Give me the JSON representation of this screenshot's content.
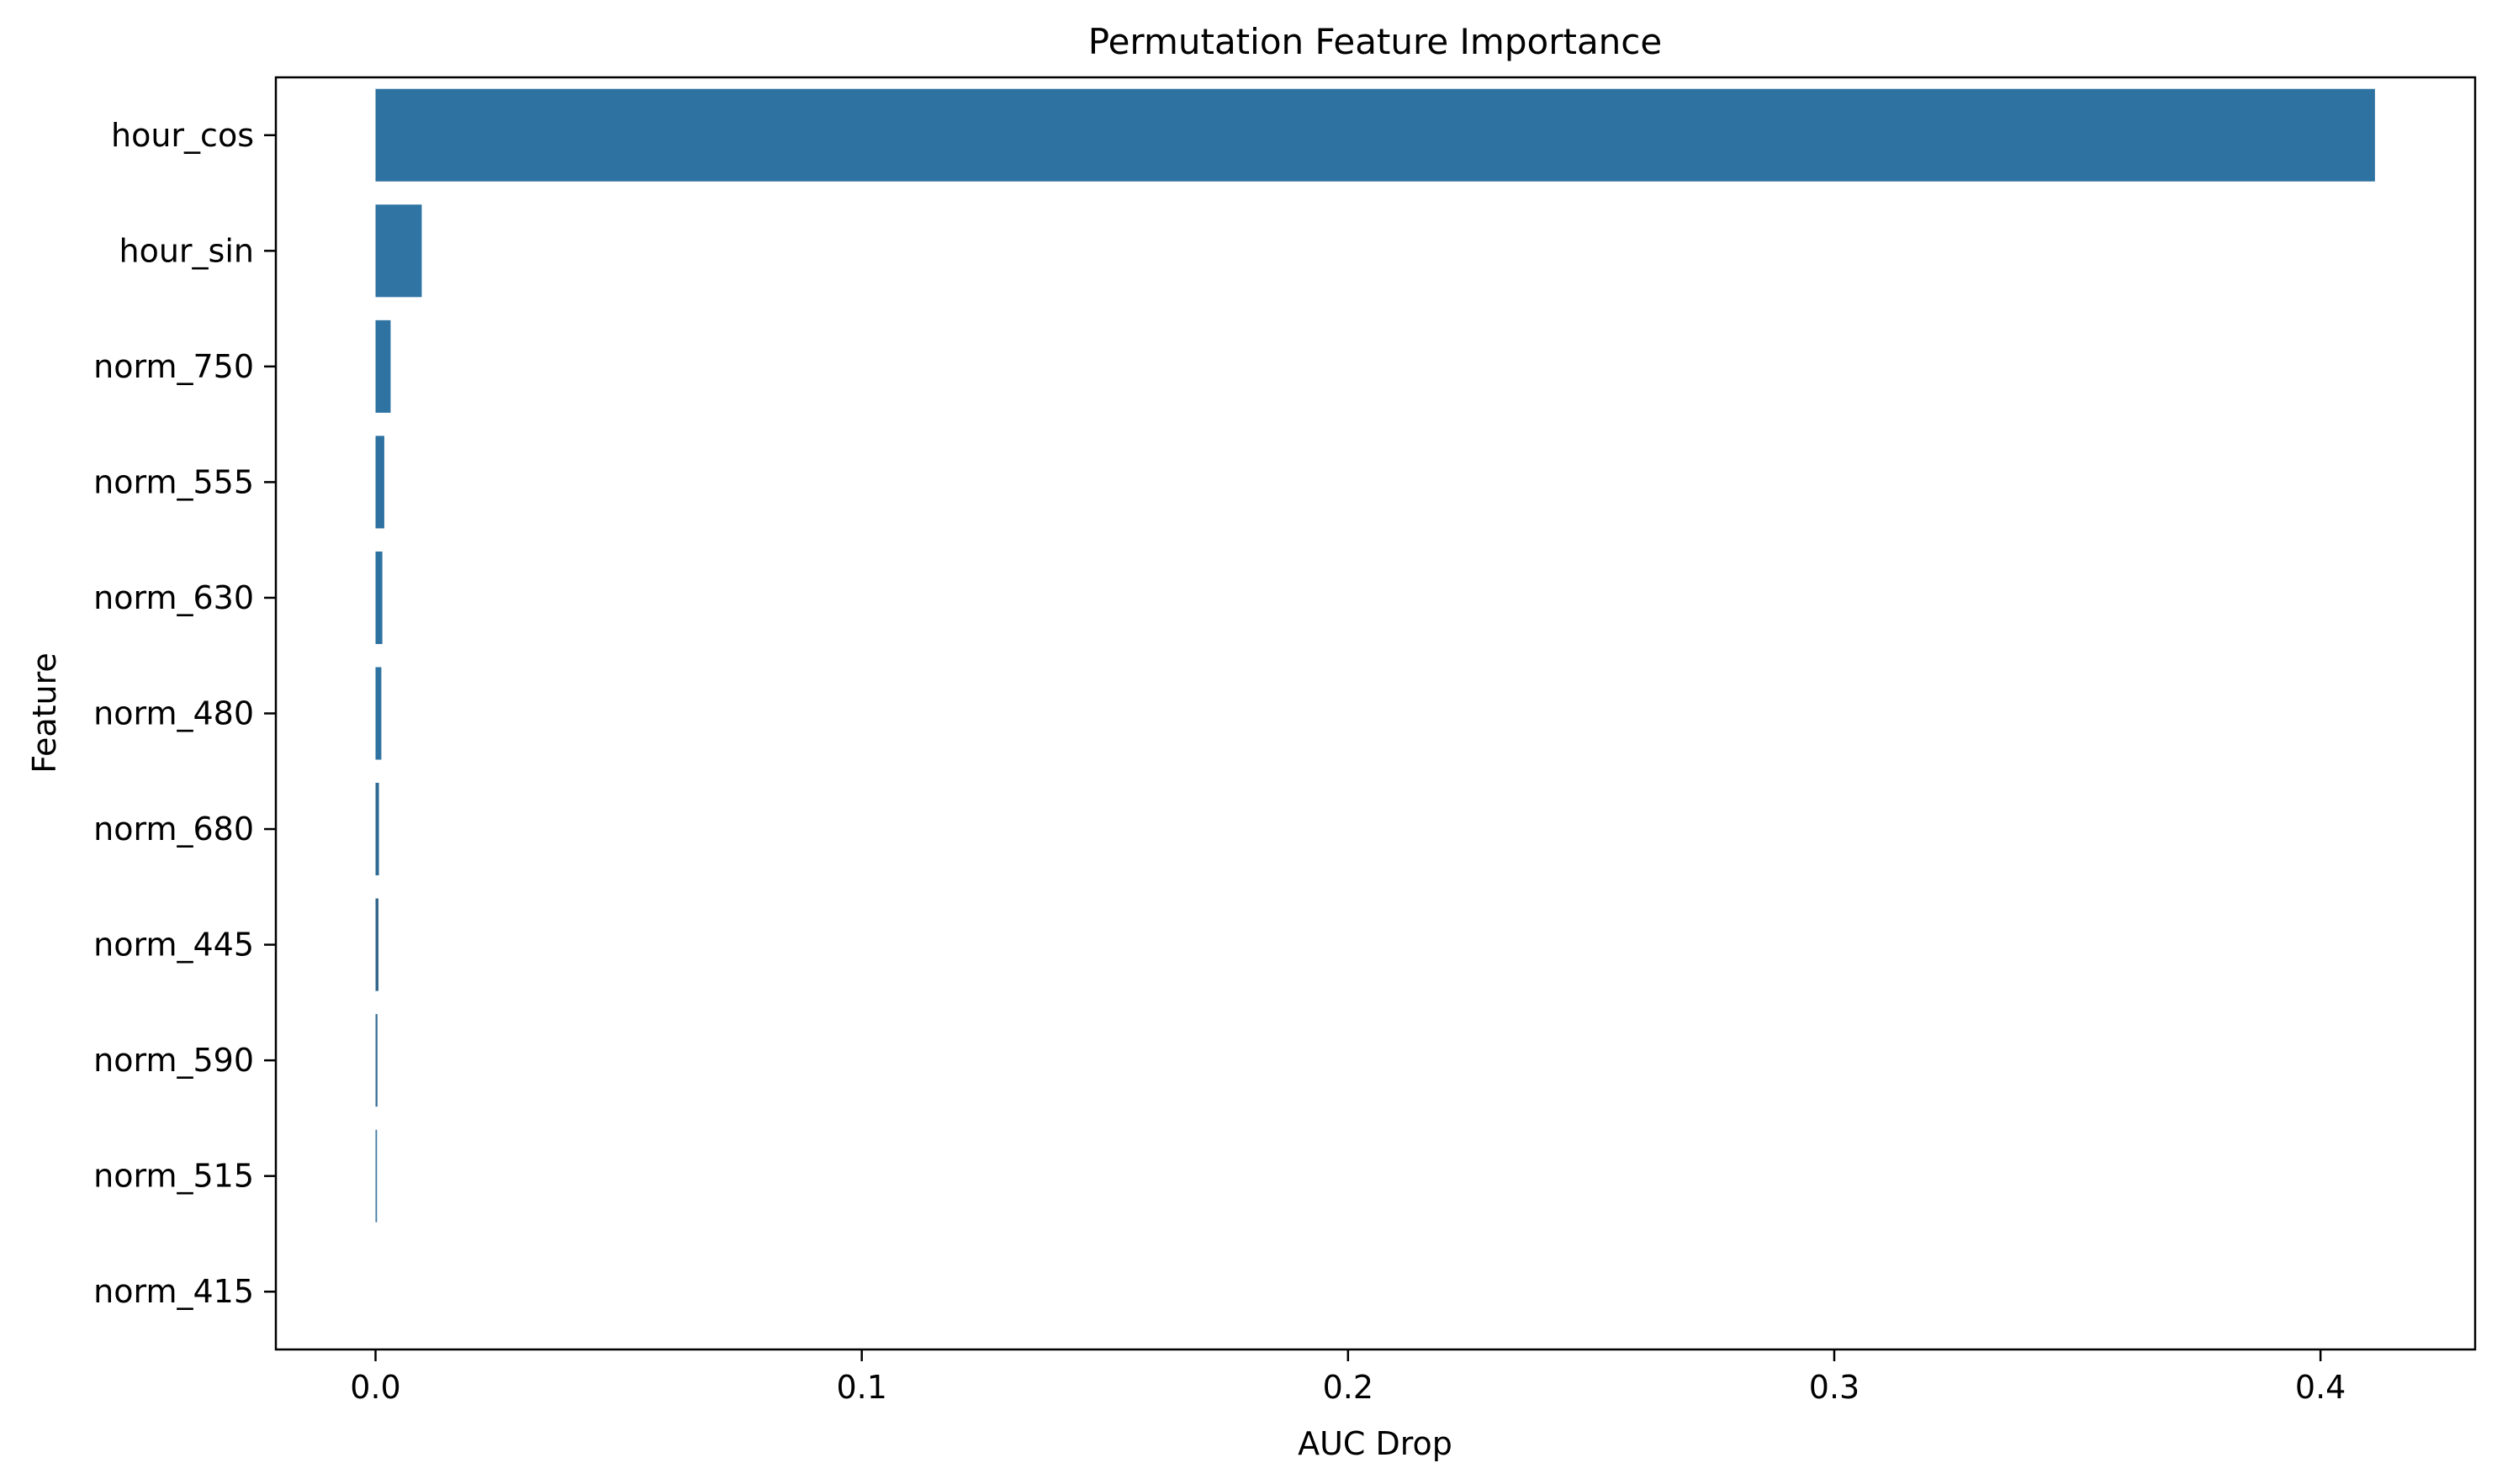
{
  "chart_data": {
    "type": "bar",
    "orientation": "horizontal",
    "title": "Permutation Feature Importance",
    "xlabel": "AUC Drop",
    "ylabel": "Feature",
    "categories": [
      "hour_cos",
      "hour_sin",
      "norm_750",
      "norm_555",
      "norm_630",
      "norm_480",
      "norm_680",
      "norm_445",
      "norm_590",
      "norm_515",
      "norm_415"
    ],
    "values": [
      0.4112,
      0.0095,
      0.0031,
      0.0018,
      0.0014,
      0.0012,
      0.0007,
      0.0006,
      0.0004,
      0.0003,
      0.0
    ],
    "xlim": [
      -0.0205,
      0.4318
    ],
    "xticks": [
      0.0,
      0.1,
      0.2,
      0.3,
      0.4
    ],
    "xtick_labels": [
      "0.0",
      "0.1",
      "0.2",
      "0.3",
      "0.4"
    ],
    "grid": false,
    "legend": "none",
    "colors": [
      "#2e72a1",
      "#3074a3",
      "#2f73a2",
      "#2e72a1",
      "#2e72a1",
      "#2e72a1",
      "#2f6b94",
      "#33688c",
      "#3b7198",
      "#3d789f",
      "#3d7aa3"
    ]
  }
}
